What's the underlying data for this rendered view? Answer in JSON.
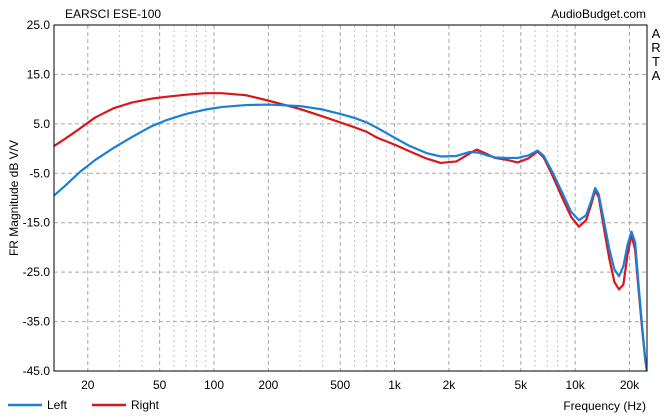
{
  "chart_data": {
    "type": "line",
    "title": "EARSCI ESE-100",
    "watermark": "AudioBudget.com",
    "side_label": "ARTA",
    "xlabel": "Frequency (Hz)",
    "ylabel": "FR Magnitude dB V/V",
    "x_scale": "log",
    "xlim": [
      13,
      25000
    ],
    "ylim": [
      -45,
      25
    ],
    "x_major_ticks": [
      20,
      50,
      100,
      200,
      500,
      1000,
      2000,
      5000,
      10000,
      20000
    ],
    "x_tick_labels": [
      "20",
      "50",
      "100",
      "200",
      "500",
      "1k",
      "2k",
      "5k",
      "10k",
      "20k"
    ],
    "y_ticks": [
      25,
      15,
      5,
      -5,
      -15,
      -25,
      -35,
      -45
    ],
    "y_tick_labels": [
      "25.0",
      "15.0",
      "5.0",
      "-5.0",
      "-15.0",
      "-25.0",
      "-35.0",
      "-45.0"
    ],
    "grid": true,
    "legend_position": "bottom-left",
    "series": [
      {
        "name": "Left",
        "color": "#1a7fd6",
        "points": [
          [
            13,
            -9.5
          ],
          [
            15,
            -7.5
          ],
          [
            18,
            -4.8
          ],
          [
            22,
            -2.3
          ],
          [
            28,
            0.2
          ],
          [
            35,
            2.3
          ],
          [
            45,
            4.5
          ],
          [
            55,
            5.8
          ],
          [
            70,
            7.0
          ],
          [
            90,
            7.9
          ],
          [
            110,
            8.4
          ],
          [
            150,
            8.8
          ],
          [
            200,
            8.9
          ],
          [
            300,
            8.6
          ],
          [
            400,
            7.9
          ],
          [
            500,
            7.0
          ],
          [
            600,
            6.2
          ],
          [
            700,
            5.3
          ],
          [
            800,
            4.2
          ],
          [
            1000,
            2.2
          ],
          [
            1200,
            0.6
          ],
          [
            1500,
            -0.9
          ],
          [
            1800,
            -1.6
          ],
          [
            2200,
            -1.5
          ],
          [
            2600,
            -0.7
          ],
          [
            2900,
            -0.8
          ],
          [
            3200,
            -1.3
          ],
          [
            3600,
            -1.8
          ],
          [
            4200,
            -1.9
          ],
          [
            4800,
            -1.9
          ],
          [
            5500,
            -1.4
          ],
          [
            6200,
            -0.4
          ],
          [
            6700,
            -1.5
          ],
          [
            7500,
            -4.8
          ],
          [
            8500,
            -9.0
          ],
          [
            9500,
            -12.8
          ],
          [
            10500,
            -14.5
          ],
          [
            11500,
            -13.5
          ],
          [
            12300,
            -10.5
          ],
          [
            12900,
            -8.0
          ],
          [
            13500,
            -9.2
          ],
          [
            14500,
            -15.0
          ],
          [
            15500,
            -20.5
          ],
          [
            16500,
            -24.5
          ],
          [
            17500,
            -25.8
          ],
          [
            18500,
            -23.8
          ],
          [
            19500,
            -19.5
          ],
          [
            20500,
            -16.8
          ],
          [
            21500,
            -19.0
          ],
          [
            22500,
            -28.0
          ],
          [
            23500,
            -36.0
          ],
          [
            24500,
            -43.0
          ],
          [
            25000,
            -45.0
          ]
        ]
      },
      {
        "name": "Right",
        "color": "#d8171d",
        "points": [
          [
            13,
            0.5
          ],
          [
            15,
            2.0
          ],
          [
            18,
            4.0
          ],
          [
            22,
            6.3
          ],
          [
            28,
            8.2
          ],
          [
            35,
            9.3
          ],
          [
            45,
            10.1
          ],
          [
            55,
            10.5
          ],
          [
            70,
            10.9
          ],
          [
            90,
            11.2
          ],
          [
            110,
            11.2
          ],
          [
            150,
            10.8
          ],
          [
            200,
            9.7
          ],
          [
            300,
            8.0
          ],
          [
            400,
            6.5
          ],
          [
            500,
            5.3
          ],
          [
            600,
            4.3
          ],
          [
            700,
            3.4
          ],
          [
            800,
            2.2
          ],
          [
            1000,
            0.8
          ],
          [
            1200,
            -0.5
          ],
          [
            1500,
            -2.0
          ],
          [
            1800,
            -2.9
          ],
          [
            2200,
            -2.6
          ],
          [
            2600,
            -1.0
          ],
          [
            2850,
            -0.2
          ],
          [
            3200,
            -1.0
          ],
          [
            3600,
            -1.9
          ],
          [
            4200,
            -2.3
          ],
          [
            4800,
            -2.8
          ],
          [
            5500,
            -2.0
          ],
          [
            6200,
            -0.6
          ],
          [
            6700,
            -1.8
          ],
          [
            7500,
            -5.5
          ],
          [
            8500,
            -10.0
          ],
          [
            9500,
            -13.8
          ],
          [
            10500,
            -15.8
          ],
          [
            11500,
            -14.5
          ],
          [
            12300,
            -11.2
          ],
          [
            12900,
            -8.5
          ],
          [
            13500,
            -9.8
          ],
          [
            14500,
            -16.5
          ],
          [
            15500,
            -22.5
          ],
          [
            16500,
            -27.0
          ],
          [
            17500,
            -28.5
          ],
          [
            18500,
            -27.5
          ],
          [
            19500,
            -21.5
          ],
          [
            20500,
            -17.5
          ],
          [
            21500,
            -20.5
          ],
          [
            22500,
            -29.0
          ],
          [
            23500,
            -36.5
          ],
          [
            24500,
            -43.0
          ],
          [
            25000,
            -45.0
          ]
        ]
      }
    ]
  }
}
